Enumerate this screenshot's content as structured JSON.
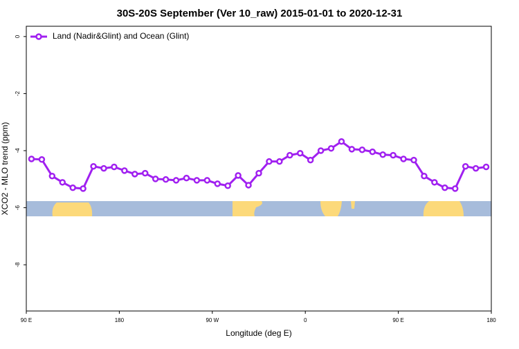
{
  "chart_data": {
    "type": "line",
    "title": "30S-20S September (Ver 10_raw)   2015-01-01 to 2020-12-31",
    "x_label": "Longitude (deg E)",
    "y_label": "XCO2 - MLO trend (ppm)",
    "x": [
      95,
      105,
      115,
      125,
      135,
      145,
      155,
      165,
      175,
      185,
      195,
      205,
      215,
      225,
      235,
      245,
      255,
      265,
      275,
      285,
      295,
      305,
      315,
      325,
      335,
      345,
      355,
      365,
      375,
      385,
      395,
      405,
      415,
      425,
      435,
      445,
      455,
      465,
      475,
      485,
      495,
      505,
      515,
      525,
      535
    ],
    "series": [
      {
        "name": "Land (Nadir&Glint) and Ocean (Glint)",
        "color": "#a020f0",
        "values": [
          -4.29,
          -4.31,
          -4.89,
          -5.11,
          -5.3,
          -5.33,
          -4.55,
          -4.62,
          -4.57,
          -4.7,
          -4.82,
          -4.79,
          -4.99,
          -5.01,
          -5.04,
          -4.96,
          -5.04,
          -5.04,
          -5.16,
          -5.23,
          -4.87,
          -5.21,
          -4.79,
          -4.38,
          -4.38,
          -4.16,
          -4.09,
          -4.33,
          -4.0,
          -3.92,
          -3.68,
          -3.95,
          -3.97,
          -4.04,
          -4.14,
          -4.16,
          -4.29,
          -4.33,
          -4.89,
          -5.11,
          -5.3,
          -5.33,
          -4.55,
          -4.62,
          -4.57
        ]
      }
    ],
    "xlim": [
      90,
      540
    ],
    "xticks": [
      {
        "value": 90,
        "label": "90 E"
      },
      {
        "value": 180,
        "label": "180"
      },
      {
        "value": 270,
        "label": "90 W"
      },
      {
        "value": 360,
        "label": "0"
      },
      {
        "value": 450,
        "label": "90 E"
      },
      {
        "value": 540,
        "label": "180"
      }
    ],
    "ylim": [
      -9.62,
      0.36
    ],
    "yticks": [
      0,
      -2,
      -4,
      -6,
      -8
    ],
    "legend": "top-left"
  }
}
